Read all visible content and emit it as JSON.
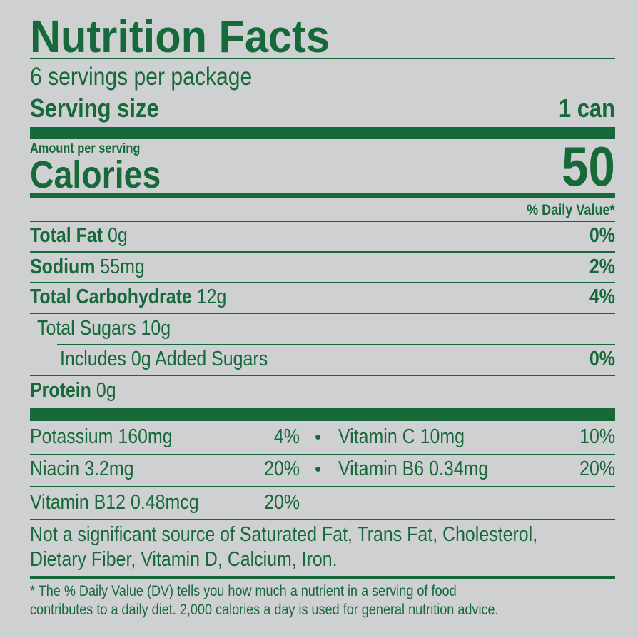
{
  "title": "Nutrition Facts",
  "servings_per_package": "6 servings per package",
  "serving_size": {
    "label": "Serving size",
    "value": "1 can"
  },
  "amount_per_serving": "Amount per serving",
  "calories": {
    "label": "Calories",
    "value": "50"
  },
  "daily_value_header": "% Daily Value*",
  "nutrients": [
    {
      "name": "Total Fat",
      "amount": "0g",
      "dv": "0%"
    },
    {
      "name": "Sodium",
      "amount": "55mg",
      "dv": "2%"
    },
    {
      "name": "Total Carbohydrate",
      "amount": "12g",
      "dv": "4%"
    },
    {
      "name": "Total Sugars 10g",
      "amount": "",
      "dv": ""
    },
    {
      "name": "Includes 0g Added Sugars",
      "amount": "",
      "dv": "0%"
    },
    {
      "name": "Protein",
      "amount": "0g",
      "dv": ""
    }
  ],
  "micronutrients": [
    {
      "name": "Potassium 160mg",
      "dv": "4%"
    },
    {
      "name": "Vitamin C 10mg",
      "dv": "10%"
    },
    {
      "name": "Niacin 3.2mg",
      "dv": "20%"
    },
    {
      "name": "Vitamin B6 0.34mg",
      "dv": "20%"
    },
    {
      "name": "Vitamin B12 0.48mcg",
      "dv": "20%"
    }
  ],
  "bullet": "•",
  "not_significant": [
    "Not a significant source of Saturated Fat, Trans Fat, Cholesterol,",
    "Dietary Fiber, Vitamin D, Calcium, Iron."
  ],
  "footnote": [
    "* The % Daily Value (DV) tells you how much a nutrient in a serving of food",
    "contributes to a daily diet. 2,000 calories a day is used for general nutrition advice."
  ],
  "colors": {
    "background": "#cfd0d2",
    "ink": "#17693a"
  }
}
